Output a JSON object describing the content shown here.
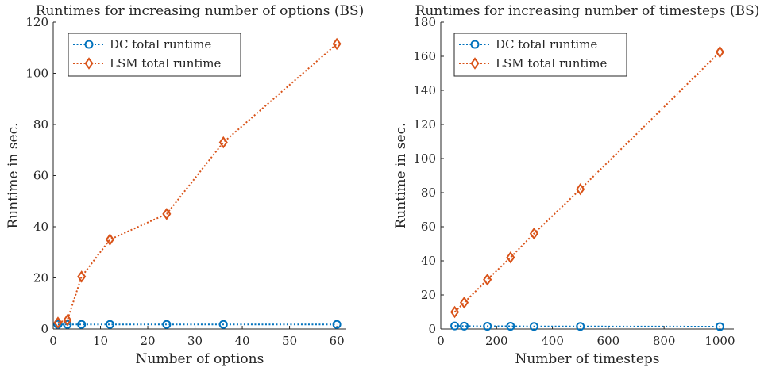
{
  "chart_data": [
    {
      "type": "line",
      "title": "Runtimes for increasing number of options (BS)",
      "xlabel": "Number of options",
      "ylabel": "Runtime in sec.",
      "xlim": [
        0,
        62
      ],
      "ylim": [
        0,
        120
      ],
      "xticks": [
        0,
        10,
        20,
        30,
        40,
        50,
        60
      ],
      "yticks": [
        0,
        20,
        40,
        60,
        80,
        100,
        120
      ],
      "grid": false,
      "legend_position": "top-left",
      "series": [
        {
          "name": "DC total runtime",
          "color": "#0072BD",
          "marker": "circle",
          "line_style": "dotted",
          "x": [
            1,
            3,
            6,
            12,
            24,
            36,
            60
          ],
          "y": [
            1.8,
            1.8,
            1.8,
            1.8,
            1.8,
            1.8,
            1.8
          ]
        },
        {
          "name": "LSM total runtime",
          "color": "#D95319",
          "marker": "diamond",
          "line_style": "dotted",
          "x": [
            1,
            3,
            6,
            12,
            24,
            36,
            60
          ],
          "y": [
            2.5,
            3.5,
            20.5,
            35,
            45,
            73,
            111.5
          ]
        }
      ]
    },
    {
      "type": "line",
      "title": "Runtimes for increasing number of timesteps (BS)",
      "xlabel": "Number of timesteps",
      "ylabel": "Runtime in sec.",
      "xlim": [
        0,
        1050
      ],
      "ylim": [
        0,
        180
      ],
      "xticks": [
        0,
        200,
        400,
        600,
        800,
        1000
      ],
      "yticks": [
        0,
        20,
        40,
        60,
        80,
        100,
        120,
        140,
        160,
        180
      ],
      "grid": false,
      "legend_position": "top-left",
      "series": [
        {
          "name": "DC total runtime",
          "color": "#0072BD",
          "marker": "circle",
          "line_style": "dotted",
          "x": [
            50,
            84,
            167,
            250,
            334,
            500,
            1000
          ],
          "y": [
            1.8,
            1.7,
            1.6,
            1.6,
            1.5,
            1.5,
            1.4
          ]
        },
        {
          "name": "LSM total runtime",
          "color": "#D95319",
          "marker": "diamond",
          "line_style": "dotted",
          "x": [
            50,
            84,
            167,
            250,
            334,
            500,
            1000
          ],
          "y": [
            10,
            15.5,
            29,
            42,
            56,
            82,
            162.5
          ]
        }
      ]
    }
  ]
}
